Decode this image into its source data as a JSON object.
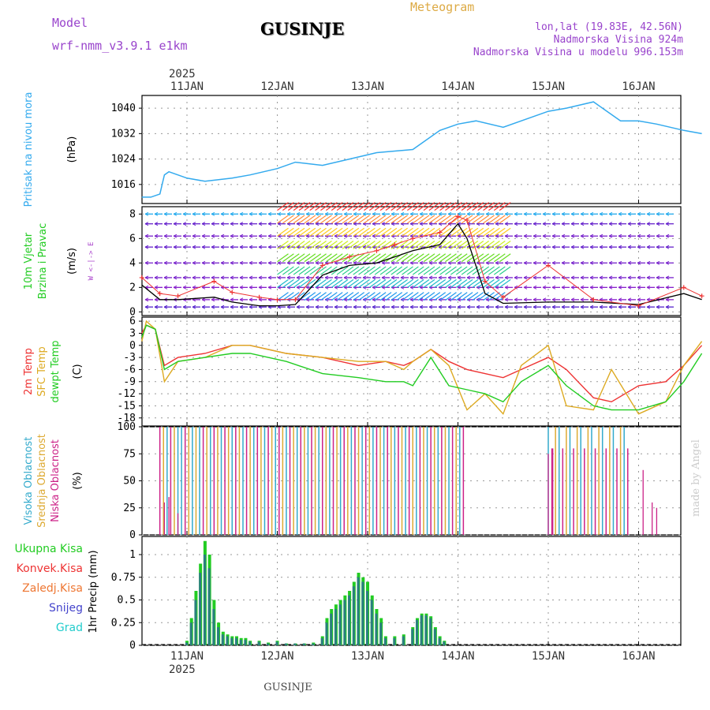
{
  "header": {
    "title_center": "Meteogram",
    "station": "GUSINJE",
    "model_label": "Model",
    "model_name": "wrf-nmm_v3.9.1 e1km",
    "coords": "lon,lat (19.83E, 42.56N)",
    "elevation": "Nadmorska Visina 924m",
    "model_elevation": "Nadmorska Visina u modelu 996.153m",
    "footer_station": "GUSINJE",
    "watermark": "made by Angel",
    "year": "2025"
  },
  "colors": {
    "pressure": "#33aaee",
    "temp": "#ee3333",
    "sfc_temp": "#ddaa22",
    "dewpt": "#22cc22",
    "hi_cloud": "#33aacc",
    "mid_cloud": "#ddaa33",
    "low_cloud": "#cc2288",
    "total_precip": "#22cc22",
    "conv_precip": "#ee3333",
    "frozen_precip": "#ee7733",
    "snow": "#4444cc",
    "graupel": "#22cccc",
    "wind_arrow": "#8822cc",
    "gust": "#ee3333"
  },
  "chart_data": [
    {
      "type": "line",
      "panel": "pressure",
      "ylabel_lines": [
        "Pritisak na nivou mora",
        "(hPa)"
      ],
      "yticks": [
        1016,
        1024,
        1032,
        1040
      ],
      "ylim": [
        1010,
        1044
      ],
      "x_days": [
        "11JAN",
        "12JAN",
        "13JAN",
        "14JAN",
        "15JAN",
        "16JAN"
      ],
      "x": [
        0.0,
        0.1,
        0.2,
        0.25,
        0.3,
        0.5,
        0.7,
        1.0,
        1.2,
        1.5,
        1.7,
        2.0,
        2.3,
        2.6,
        3.0,
        3.3,
        3.5,
        3.7,
        4.0,
        4.3,
        4.5,
        4.7,
        5.0,
        5.3,
        5.5,
        5.7,
        6.0,
        6.2
      ],
      "y": [
        1012,
        1012,
        1013,
        1019,
        1020,
        1018,
        1017,
        1018,
        1019,
        1021,
        1023,
        1022,
        1024,
        1026,
        1027,
        1033,
        1035,
        1036,
        1034,
        1037,
        1039,
        1040,
        1042,
        1036,
        1036,
        1035,
        1033,
        1032
      ],
      "grid": true
    },
    {
      "type": "line",
      "panel": "wind",
      "ylabel_lines": [
        "10m Vjetar",
        "Brzina i Pravac",
        "(m/s)"
      ],
      "compass": "W <-|-> E",
      "yticks": [
        0,
        2,
        4,
        6,
        8
      ],
      "ylim": [
        -0.3,
        8.6
      ],
      "x": [
        0.0,
        0.2,
        0.4,
        0.8,
        1.0,
        1.3,
        1.5,
        1.7,
        2.0,
        2.3,
        2.6,
        2.8,
        3.0,
        3.3,
        3.5,
        3.6,
        3.8,
        4.0,
        4.5,
        5.0,
        5.5,
        6.0,
        6.2
      ],
      "wind_speed": [
        2.2,
        1.0,
        1.0,
        1.2,
        0.8,
        0.5,
        0.5,
        0.6,
        3.0,
        3.8,
        4.0,
        4.5,
        5.0,
        5.5,
        7.2,
        6.0,
        1.5,
        0.7,
        0.8,
        0.8,
        0.6,
        1.5,
        1.0
      ],
      "gust_speed": [
        2.8,
        1.5,
        1.3,
        2.5,
        1.6,
        1.2,
        1.0,
        1.0,
        3.8,
        4.5,
        5.0,
        5.5,
        6.0,
        6.5,
        7.8,
        7.5,
        2.5,
        1.2,
        3.8,
        1.0,
        0.5,
        2.0,
        1.3
      ],
      "grid": true
    },
    {
      "type": "line",
      "panel": "temperature",
      "ylabel_lines": [
        "2m Temp",
        "SFC Temp",
        "dewpt Temp",
        "(C)"
      ],
      "yticks": [
        -18,
        -15,
        -12,
        -9,
        -6,
        -3,
        0,
        3,
        6
      ],
      "ylim": [
        -20,
        7
      ],
      "series": [
        {
          "name": "2m Temp",
          "color_key": "temp",
          "x": [
            0.0,
            0.05,
            0.15,
            0.25,
            0.4,
            0.7,
            1.0,
            1.2,
            1.6,
            2.0,
            2.4,
            2.7,
            2.9,
            3.0,
            3.2,
            3.4,
            3.6,
            3.8,
            4.0,
            4.2,
            4.5,
            4.7,
            5.0,
            5.2,
            5.5,
            5.8,
            6.0,
            6.2
          ],
          "y": [
            3,
            5,
            4,
            -5,
            -3,
            -2,
            0,
            0,
            -2,
            -3,
            -5,
            -4,
            -5,
            -4,
            -1,
            -4,
            -6,
            -7,
            -8,
            -6,
            -3,
            -6,
            -13,
            -14,
            -10,
            -9,
            -5,
            0
          ]
        },
        {
          "name": "SFC Temp",
          "color_key": "sfc_temp",
          "x": [
            0.0,
            0.05,
            0.15,
            0.25,
            0.4,
            0.7,
            1.0,
            1.2,
            1.6,
            2.0,
            2.4,
            2.7,
            2.9,
            3.0,
            3.2,
            3.4,
            3.6,
            3.8,
            4.0,
            4.2,
            4.5,
            4.7,
            5.0,
            5.2,
            5.5,
            5.8,
            6.0,
            6.2
          ],
          "y": [
            1,
            6,
            4,
            -9,
            -4,
            -3,
            0,
            0,
            -2,
            -3,
            -4,
            -4,
            -6,
            -4,
            -1,
            -5,
            -16,
            -12,
            -17,
            -5,
            0,
            -15,
            -16,
            -6,
            -17,
            -14,
            -5,
            1
          ]
        },
        {
          "name": "dewpt Temp",
          "color_key": "dewpt",
          "x": [
            0.0,
            0.05,
            0.15,
            0.25,
            0.4,
            0.7,
            1.0,
            1.2,
            1.6,
            2.0,
            2.4,
            2.7,
            2.9,
            3.0,
            3.2,
            3.4,
            3.6,
            3.8,
            4.0,
            4.2,
            4.5,
            4.7,
            5.0,
            5.2,
            5.5,
            5.8,
            6.0,
            6.2
          ],
          "y": [
            2,
            5,
            4,
            -6,
            -4,
            -3,
            -2,
            -2,
            -4,
            -7,
            -8,
            -9,
            -9,
            -10,
            -3,
            -10,
            -11,
            -12,
            -14,
            -9,
            -5,
            -10,
            -15,
            -16,
            -16,
            -14,
            -9,
            -2
          ]
        }
      ],
      "grid": true
    },
    {
      "type": "bar",
      "panel": "cloud",
      "ylabel_lines": [
        "Visoka Oblacnost",
        "Srednja Oblacnost",
        "Niska Oblacnost",
        "(%)"
      ],
      "yticks": [
        0,
        25,
        50,
        75,
        100
      ],
      "ylim": [
        0,
        100
      ],
      "cloud_periods": [
        {
          "x0": 0.2,
          "x1": 3.6,
          "hi": 100,
          "mid": 100,
          "low": 100
        },
        {
          "x0": 4.5,
          "x1": 5.4,
          "hi": 100,
          "mid": 100,
          "low": 80
        }
      ],
      "grid": true
    },
    {
      "type": "bar",
      "panel": "precip",
      "ylabel_lines": [
        "Ukupna Kisa",
        "Konvek.Kisa",
        "Zaledj.Kisa",
        "Snijeg",
        "Grad",
        "1hr Precip (mm)"
      ],
      "yticks": [
        0,
        0.25,
        0.5,
        0.75,
        1
      ],
      "ylim": [
        0,
        1.2
      ],
      "x": [
        0.5,
        0.55,
        0.6,
        0.65,
        0.7,
        0.75,
        0.8,
        0.85,
        0.9,
        0.95,
        1.0,
        1.05,
        1.1,
        1.15,
        1.2,
        1.3,
        1.4,
        1.5,
        1.6,
        1.7,
        1.8,
        1.9,
        2.0,
        2.05,
        2.1,
        2.15,
        2.2,
        2.25,
        2.3,
        2.35,
        2.4,
        2.45,
        2.5,
        2.55,
        2.6,
        2.65,
        2.7,
        2.8,
        2.9,
        3.0,
        3.05,
        3.1,
        3.15,
        3.2,
        3.25,
        3.3,
        3.35
      ],
      "total": [
        0.05,
        0.3,
        0.6,
        0.9,
        1.15,
        1.0,
        0.5,
        0.25,
        0.15,
        0.12,
        0.1,
        0.1,
        0.08,
        0.08,
        0.05,
        0.05,
        0.03,
        0.05,
        0.02,
        0.02,
        0.02,
        0.03,
        0.1,
        0.3,
        0.4,
        0.45,
        0.5,
        0.55,
        0.6,
        0.7,
        0.8,
        0.75,
        0.7,
        0.55,
        0.4,
        0.3,
        0.1,
        0.1,
        0.12,
        0.2,
        0.3,
        0.35,
        0.35,
        0.32,
        0.2,
        0.1,
        0.05
      ],
      "snow": [
        0.03,
        0.25,
        0.5,
        0.8,
        1.0,
        0.85,
        0.4,
        0.2,
        0.12,
        0.1,
        0.08,
        0.08,
        0.06,
        0.06,
        0.04,
        0.04,
        0.02,
        0.04,
        0.02,
        0.02,
        0.02,
        0.02,
        0.08,
        0.25,
        0.35,
        0.4,
        0.45,
        0.5,
        0.55,
        0.65,
        0.75,
        0.7,
        0.6,
        0.5,
        0.35,
        0.25,
        0.08,
        0.08,
        0.1,
        0.18,
        0.28,
        0.33,
        0.33,
        0.3,
        0.18,
        0.08,
        0.04
      ],
      "grid": true
    }
  ]
}
